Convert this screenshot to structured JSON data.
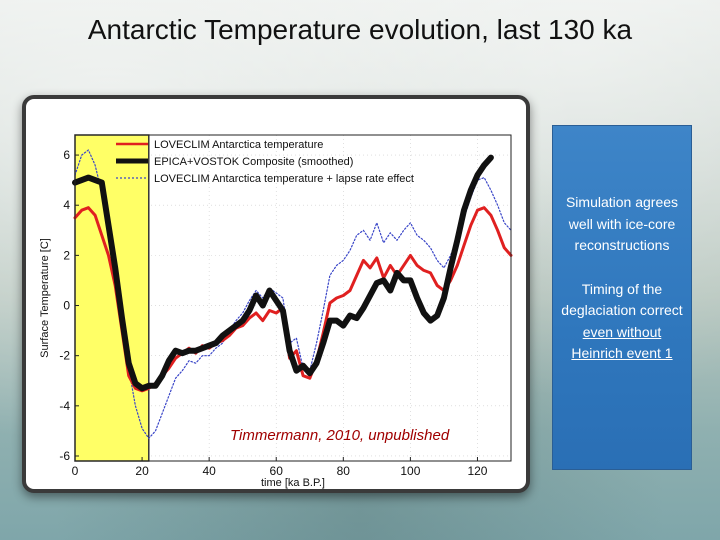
{
  "slide": {
    "title": "Antarctic Temperature evolution, last 130 ka",
    "notes": {
      "p1": "Simulation agrees well with ice-core reconstructions",
      "p2_prefix": "Timing of the deglaciation correct ",
      "p2_underlined": "even without Heinrich event 1"
    }
  },
  "colors": {
    "loveclim": "#e02020",
    "epica": "#111111",
    "lapse": "#3a46c8",
    "highlight": "#ffff66"
  },
  "chart_data": {
    "type": "line",
    "title": "",
    "xlabel": "time [ka B.P.]",
    "ylabel": "Surface Temperature [C]",
    "xlim": [
      0,
      130
    ],
    "ylim": [
      -6.2,
      6.8
    ],
    "xticks": [
      0,
      20,
      40,
      60,
      80,
      100,
      120
    ],
    "yticks": [
      -6,
      -4,
      -2,
      0,
      2,
      4,
      6
    ],
    "highlight_range_x": [
      0,
      22
    ],
    "annotation": "Timmermann, 2010, unpublished",
    "legend_position": "top",
    "series": [
      {
        "name": "LOVECLIM Antarctica temperature",
        "style": "thin-red",
        "x": [
          0,
          2,
          4,
          6,
          8,
          10,
          12,
          14,
          16,
          18,
          20,
          22,
          24,
          26,
          28,
          30,
          32,
          34,
          36,
          38,
          40,
          42,
          44,
          46,
          48,
          50,
          52,
          54,
          56,
          58,
          60,
          62,
          64,
          66,
          68,
          70,
          72,
          74,
          76,
          78,
          80,
          82,
          84,
          86,
          88,
          90,
          92,
          94,
          96,
          98,
          100,
          102,
          104,
          106,
          108,
          110,
          112,
          114,
          116,
          118,
          120,
          122,
          124,
          126,
          128,
          130
        ],
        "values": [
          3.5,
          3.8,
          3.9,
          3.6,
          2.8,
          2.0,
          0.8,
          -1.0,
          -2.8,
          -3.3,
          -3.4,
          -3.3,
          -3.1,
          -2.8,
          -2.5,
          -2.1,
          -1.9,
          -1.7,
          -1.9,
          -1.6,
          -1.7,
          -1.5,
          -1.4,
          -1.2,
          -0.9,
          -0.8,
          -0.5,
          -0.3,
          -0.6,
          -0.2,
          -0.3,
          -0.1,
          -2.1,
          -1.8,
          -2.8,
          -2.9,
          -2.2,
          -1.1,
          0.1,
          0.3,
          0.4,
          0.6,
          1.2,
          1.8,
          1.5,
          1.9,
          1.1,
          1.6,
          1.2,
          1.6,
          2.0,
          1.6,
          1.4,
          1.3,
          0.8,
          0.6,
          1.0,
          1.6,
          2.4,
          3.2,
          3.8,
          3.9,
          3.6,
          3.0,
          2.3,
          2.0
        ]
      },
      {
        "name": "EPICA+VOSTOK Composite (smoothed)",
        "style": "thick-black",
        "x": [
          0,
          2,
          4,
          6,
          8,
          10,
          12,
          14,
          16,
          18,
          20,
          22,
          24,
          26,
          28,
          30,
          32,
          34,
          36,
          38,
          40,
          42,
          44,
          46,
          48,
          50,
          52,
          54,
          56,
          58,
          60,
          62,
          64,
          66,
          68,
          70,
          72,
          74,
          76,
          78,
          80,
          82,
          84,
          86,
          88,
          90,
          92,
          94,
          96,
          98,
          100,
          102,
          104,
          106,
          108,
          110,
          112,
          114,
          116,
          118,
          120,
          122,
          124
        ],
        "values": [
          4.9,
          5.0,
          5.1,
          5.0,
          4.9,
          3.2,
          1.5,
          -0.5,
          -2.3,
          -3.1,
          -3.3,
          -3.2,
          -3.2,
          -2.8,
          -2.2,
          -1.8,
          -1.9,
          -1.8,
          -1.8,
          -1.7,
          -1.6,
          -1.5,
          -1.2,
          -1.0,
          -0.8,
          -0.6,
          -0.2,
          0.4,
          0.0,
          0.6,
          0.2,
          -0.2,
          -1.8,
          -2.6,
          -2.4,
          -2.7,
          -2.3,
          -1.5,
          -0.6,
          -0.6,
          -0.8,
          -0.4,
          -0.5,
          -0.1,
          0.4,
          0.9,
          1.0,
          0.6,
          1.3,
          1.0,
          1.0,
          0.3,
          -0.3,
          -0.6,
          -0.4,
          0.3,
          1.5,
          2.6,
          3.8,
          4.6,
          5.2,
          5.6,
          5.9
        ]
      },
      {
        "name": "LOVECLIM Antarctica temperature + lapse rate effect",
        "style": "dotted-blue",
        "x": [
          0,
          2,
          4,
          6,
          8,
          10,
          12,
          14,
          16,
          18,
          20,
          22,
          24,
          26,
          28,
          30,
          32,
          34,
          36,
          38,
          40,
          42,
          44,
          46,
          48,
          50,
          52,
          54,
          56,
          58,
          60,
          62,
          64,
          66,
          68,
          70,
          72,
          74,
          76,
          78,
          80,
          82,
          84,
          86,
          88,
          90,
          92,
          94,
          96,
          98,
          100,
          102,
          104,
          106,
          108,
          110,
          112,
          114,
          116,
          118,
          120,
          122,
          124,
          126,
          128,
          130
        ],
        "values": [
          5.2,
          6.0,
          6.2,
          5.6,
          4.5,
          3.0,
          1.5,
          -0.5,
          -2.5,
          -4.0,
          -4.9,
          -5.3,
          -5.0,
          -4.3,
          -3.6,
          -2.9,
          -2.6,
          -2.2,
          -2.3,
          -2.0,
          -2.0,
          -1.7,
          -1.5,
          -1.0,
          -0.6,
          -0.3,
          0.2,
          0.6,
          0.3,
          0.7,
          0.5,
          0.3,
          -1.5,
          -1.3,
          -2.5,
          -2.6,
          -1.5,
          -0.2,
          1.2,
          1.6,
          1.8,
          2.2,
          2.8,
          3.0,
          2.6,
          3.3,
          2.5,
          2.9,
          2.6,
          3.0,
          3.3,
          2.8,
          2.6,
          2.3,
          1.8,
          1.5,
          2.0,
          2.7,
          3.5,
          4.3,
          5.0,
          5.1,
          4.6,
          4.0,
          3.3,
          3.0
        ]
      }
    ]
  }
}
